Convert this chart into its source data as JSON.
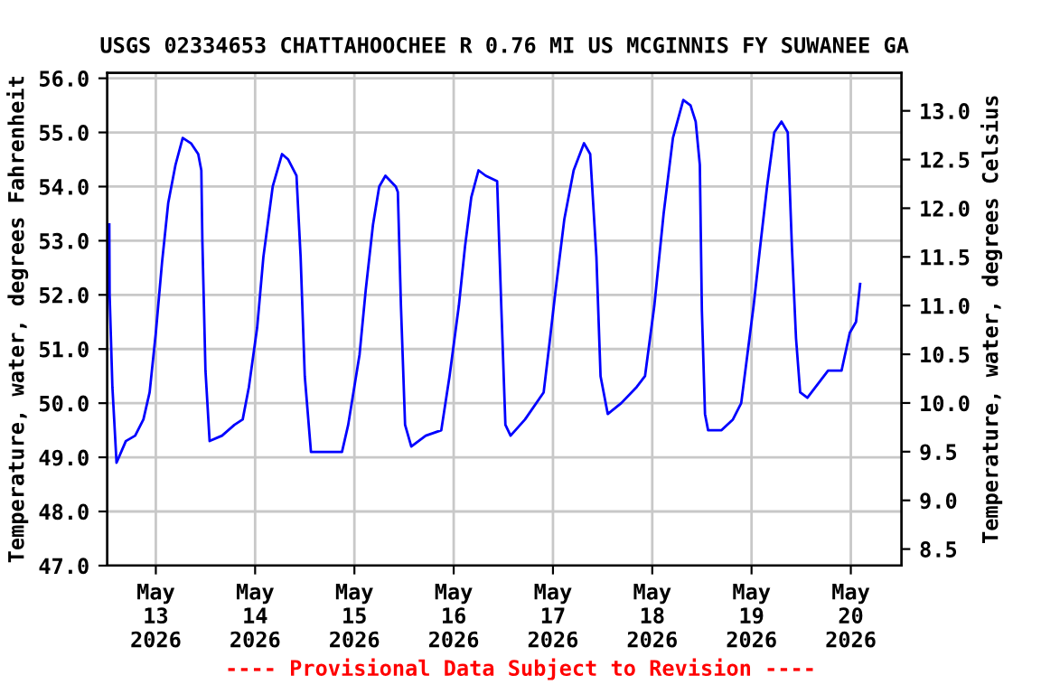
{
  "chart_data": {
    "type": "line",
    "title": "USGS 02334653 CHATTAHOOCHEE R 0.76 MI US MCGINNIS FY SUWANEE GA",
    "ylabel": "Temperature, water, degrees Fahrenheit",
    "y2label": "Temperature, water, degrees Celsius",
    "annotations": [
      "---- Provisional Data Subject to Revision ----"
    ],
    "x": [
      "2026-05-12T12:45",
      "2026-05-12T12:50",
      "2026-05-12T13:30",
      "2026-05-12T14:30",
      "2026-05-12T16:45",
      "2026-05-12T19:00",
      "2026-05-12T21:00",
      "2026-05-12T22:30",
      "2026-05-13T00:00",
      "2026-05-13T01:30",
      "2026-05-13T03:00",
      "2026-05-13T04:45",
      "2026-05-13T06:30",
      "2026-05-13T08:30",
      "2026-05-13T10:15",
      "2026-05-13T11:00",
      "2026-05-13T11:15",
      "2026-05-13T12:00",
      "2026-05-13T13:00",
      "2026-05-13T16:00",
      "2026-05-13T19:00",
      "2026-05-13T21:00",
      "2026-05-13T22:30",
      "2026-05-14T00:30",
      "2026-05-14T02:00",
      "2026-05-14T04:15",
      "2026-05-14T06:30",
      "2026-05-14T08:00",
      "2026-05-14T10:00",
      "2026-05-14T11:00",
      "2026-05-14T12:00",
      "2026-05-14T13:30",
      "2026-05-14T21:00",
      "2026-05-14T22:30",
      "2026-05-15T01:15",
      "2026-05-15T02:45",
      "2026-05-15T04:30",
      "2026-05-15T06:00",
      "2026-05-15T07:30",
      "2026-05-15T10:00",
      "2026-05-15T10:30",
      "2026-05-15T11:15",
      "2026-05-15T12:15",
      "2026-05-15T13:45",
      "2026-05-15T17:15",
      "2026-05-15T21:00",
      "2026-05-15T23:00",
      "2026-05-16T01:15",
      "2026-05-16T02:45",
      "2026-05-16T04:15",
      "2026-05-16T06:00",
      "2026-05-16T07:45",
      "2026-05-16T10:30",
      "2026-05-16T11:30",
      "2026-05-16T12:30",
      "2026-05-16T13:45",
      "2026-05-16T17:15",
      "2026-05-16T21:45",
      "2026-05-16T23:00",
      "2026-05-17T00:30",
      "2026-05-17T02:45",
      "2026-05-17T05:00",
      "2026-05-17T07:30",
      "2026-05-17T09:00",
      "2026-05-17T10:30",
      "2026-05-17T11:30",
      "2026-05-17T13:15",
      "2026-05-17T16:30",
      "2026-05-17T20:15",
      "2026-05-17T22:15",
      "2026-05-18T00:30",
      "2026-05-18T02:45",
      "2026-05-18T05:00",
      "2026-05-18T07:30",
      "2026-05-18T09:15",
      "2026-05-18T10:30",
      "2026-05-18T11:30",
      "2026-05-18T12:00",
      "2026-05-18T12:45",
      "2026-05-18T13:30",
      "2026-05-18T16:45",
      "2026-05-18T19:30",
      "2026-05-18T21:30",
      "2026-05-18T23:00",
      "2026-05-19T00:30",
      "2026-05-19T02:15",
      "2026-05-19T03:45",
      "2026-05-19T05:30",
      "2026-05-19T07:15",
      "2026-05-19T08:45",
      "2026-05-19T09:45",
      "2026-05-19T10:45",
      "2026-05-19T11:45",
      "2026-05-19T13:30",
      "2026-05-19T16:30",
      "2026-05-19T18:30",
      "2026-05-19T21:45",
      "2026-05-19T23:45",
      "2026-05-20T01:15",
      "2026-05-20T02:15"
    ],
    "series": [
      {
        "color": "#0000ff",
        "values": [
          53.3,
          52.0,
          50.3,
          48.9,
          49.3,
          49.4,
          49.7,
          50.2,
          51.3,
          52.6,
          53.7,
          54.4,
          54.9,
          54.8,
          54.6,
          54.3,
          53.0,
          50.6,
          49.3,
          49.4,
          49.6,
          49.7,
          50.3,
          51.4,
          52.7,
          54.0,
          54.6,
          54.5,
          54.2,
          52.7,
          50.5,
          49.1,
          49.1,
          49.6,
          50.9,
          52.1,
          53.3,
          54.0,
          54.2,
          54.0,
          53.9,
          51.8,
          49.6,
          49.2,
          49.4,
          49.5,
          50.5,
          51.8,
          52.9,
          53.8,
          54.3,
          54.2,
          54.1,
          51.8,
          49.6,
          49.4,
          49.7,
          50.2,
          51.0,
          52.0,
          53.4,
          54.3,
          54.8,
          54.6,
          52.7,
          50.5,
          49.8,
          50.0,
          50.3,
          50.5,
          51.8,
          53.5,
          54.9,
          55.6,
          55.5,
          55.2,
          54.4,
          51.7,
          49.8,
          49.5,
          49.5,
          49.7,
          50.0,
          50.9,
          51.8,
          53.0,
          54.0,
          55.0,
          55.2,
          55.0,
          52.9,
          51.2,
          50.2,
          50.1,
          50.4,
          50.6,
          50.6,
          51.3,
          51.5,
          52.2
        ]
      }
    ],
    "xlim": [
      "2026-05-12T12:15",
      "2026-05-20T12:15"
    ],
    "xticks": [
      {
        "value": "2026-05-13",
        "label": "May\n13\n2026"
      },
      {
        "value": "2026-05-14",
        "label": "May\n14\n2026"
      },
      {
        "value": "2026-05-15",
        "label": "May\n15\n2026"
      },
      {
        "value": "2026-05-16",
        "label": "May\n16\n2026"
      },
      {
        "value": "2026-05-17",
        "label": "May\n17\n2026"
      },
      {
        "value": "2026-05-18",
        "label": "May\n18\n2026"
      },
      {
        "value": "2026-05-19",
        "label": "May\n19\n2026"
      },
      {
        "value": "2026-05-20",
        "label": "May\n20\n2026"
      }
    ],
    "ylim": [
      47.0,
      56.1
    ],
    "yticks": [
      {
        "value": 47,
        "label": "47.0"
      },
      {
        "value": 48,
        "label": "48.0"
      },
      {
        "value": 49,
        "label": "49.0"
      },
      {
        "value": 50,
        "label": "50.0"
      },
      {
        "value": 51,
        "label": "51.0"
      },
      {
        "value": 52,
        "label": "52.0"
      },
      {
        "value": 53,
        "label": "53.0"
      },
      {
        "value": 54,
        "label": "54.0"
      },
      {
        "value": 55,
        "label": "55.0"
      },
      {
        "value": 56,
        "label": "56.0"
      }
    ],
    "y2lim": [
      8.33,
      13.39
    ],
    "y2ticks": [
      {
        "value": 8.5,
        "label": "8.5"
      },
      {
        "value": 9,
        "label": "9.0"
      },
      {
        "value": 9.5,
        "label": "9.5"
      },
      {
        "value": 10,
        "label": "10.0"
      },
      {
        "value": 10.5,
        "label": "10.5"
      },
      {
        "value": 11,
        "label": "11.0"
      },
      {
        "value": 11.5,
        "label": "11.5"
      },
      {
        "value": 12,
        "label": "12.0"
      },
      {
        "value": 12.5,
        "label": "12.5"
      },
      {
        "value": 13,
        "label": "13.0"
      }
    ],
    "grid": true,
    "legend": false,
    "marker": "none",
    "line_style": "solid"
  }
}
